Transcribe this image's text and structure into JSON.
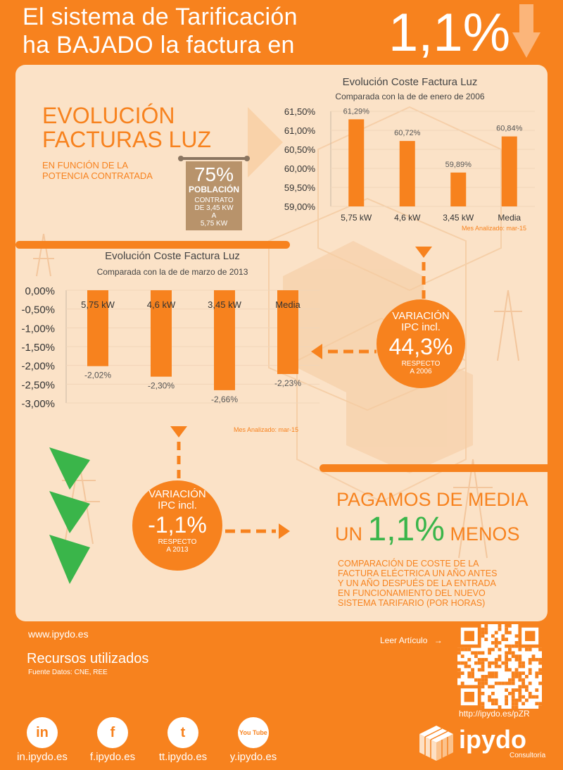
{
  "header": {
    "line1": "El sistema de Tarificación",
    "line2": "ha BAJADO la factura en",
    "big_value": "1,1%"
  },
  "section1": {
    "title_line1": "EVOLUCIÓN",
    "title_line2": "FACTURAS LUZ",
    "sub_line1": "EN FUNCIÓN DE LA",
    "sub_line2": "POTENCIA CONTRATADA",
    "sign": {
      "pct": "75%",
      "label": "POBLACIÓN",
      "line1": "CONTRATO",
      "line2": "DE 3,45 KW",
      "line3": "A",
      "line4": "5,75 KW"
    }
  },
  "chart_data": [
    {
      "type": "bar",
      "title": "Evolución Coste Factura Luz",
      "subtitle": "Comparada con la de de enero de 2006",
      "categories": [
        "5,75 kW",
        "4,6 kW",
        "3,45 kW",
        "Media"
      ],
      "values": [
        61.29,
        60.72,
        59.89,
        60.84
      ],
      "value_labels": [
        "61,29%",
        "60,72%",
        "59,89%",
        "60,84%"
      ],
      "yticks": [
        "61,50%",
        "61,00%",
        "60,50%",
        "60,00%",
        "59,50%",
        "59,00%"
      ],
      "ylim": [
        59.0,
        61.5
      ],
      "note": "Mes Analizado: mar-15",
      "color": "#f7821e"
    },
    {
      "type": "bar",
      "title": "Evolución Coste Factura Luz",
      "subtitle": "Comparada con la de de marzo de 2013",
      "categories": [
        "5,75 kW",
        "4,6 kW",
        "3,45 kW",
        "Media"
      ],
      "values": [
        -2.02,
        -2.3,
        -2.66,
        -2.23
      ],
      "value_labels": [
        "-2,02%",
        "-2,30%",
        "-2,66%",
        "-2,23%"
      ],
      "yticks": [
        "0,00%",
        "-0,50%",
        "-1,00%",
        "-1,50%",
        "-2,00%",
        "-2,50%",
        "-3,00%"
      ],
      "ylim": [
        -3.0,
        0.0
      ],
      "note": "Mes Analizado: mar-15",
      "color": "#f7821e"
    }
  ],
  "circle1": {
    "line1": "VARIACIÓN",
    "line2": "IPC incl.",
    "value": "44,3%",
    "line3": "RESPECTO",
    "line4": "A 2006"
  },
  "circle2": {
    "line1": "VARIACIÓN",
    "line2": "IPC incl.",
    "value": "-1,1%",
    "line3": "RESPECTO",
    "line4": "A 2013"
  },
  "conclusion": {
    "line1": "PAGAMOS DE MEDIA",
    "un": "UN",
    "value": "1,1%",
    "menos": "MENOS",
    "desc1": "COMPARACIÓN DE COSTE DE LA",
    "desc2": "FACTURA ELÉCTRICA UN AÑO ANTES",
    "desc3": "Y UN AÑO DESPUÉS DE LA ENTRADA",
    "desc4": "EN FUNCIONAMIENTO DEL NUEVO",
    "desc5": "SISTEMA TARIFARIO (POR HORAS)"
  },
  "footer": {
    "website": "www.ipydo.es",
    "resources_title": "Recursos utilizados",
    "resources_source": "Fuente Datos: CNE, REE",
    "read_article": "Leer Artículo",
    "short_url": "http://ipydo.es/pZR",
    "brand": "ipydo",
    "brand_sub": "Consultoría",
    "social": [
      {
        "icon": "linkedin-icon",
        "glyph": "in",
        "label": "in.ipydo.es"
      },
      {
        "icon": "facebook-icon",
        "glyph": "f",
        "label": "f.ipydo.es"
      },
      {
        "icon": "twitter-icon",
        "glyph": "t",
        "label": "tt.ipydo.es"
      },
      {
        "icon": "youtube-icon",
        "glyph": "You Tube",
        "label": "y.ipydo.es"
      }
    ]
  }
}
